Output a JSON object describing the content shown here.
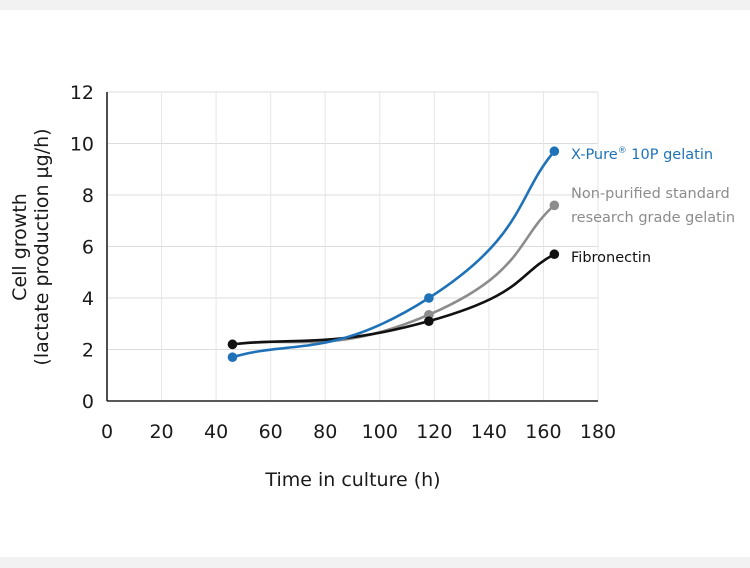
{
  "chart_data": {
    "type": "line",
    "title": "",
    "xlabel": "Time in culture (h)",
    "ylabel_lines": [
      "Cell growth",
      "(lactate production µg/h)"
    ],
    "xlim": [
      0,
      180
    ],
    "ylim": [
      0,
      12
    ],
    "x_ticks": [
      0,
      20,
      40,
      60,
      80,
      100,
      120,
      140,
      160,
      180
    ],
    "y_ticks": [
      0,
      2,
      4,
      6,
      8,
      10,
      12
    ],
    "grid": true,
    "legend_placement": "right, at line ends",
    "series": [
      {
        "name": "X-Pure",
        "name_superscript": "®",
        "name_suffix": " 10P gelatin",
        "color": "#1f72b8",
        "x": [
          46,
          118,
          164
        ],
        "y": [
          1.7,
          4.0,
          9.7
        ]
      },
      {
        "name_lines": [
          "Non-purified standard",
          "research grade gelatin"
        ],
        "color": "#8c8c8c",
        "x": [
          46,
          118,
          164
        ],
        "y": [
          2.2,
          3.35,
          7.6
        ]
      },
      {
        "name": "Fibronectin",
        "color": "#111111",
        "x": [
          46,
          118,
          164
        ],
        "y": [
          2.2,
          3.1,
          5.7
        ]
      }
    ]
  }
}
